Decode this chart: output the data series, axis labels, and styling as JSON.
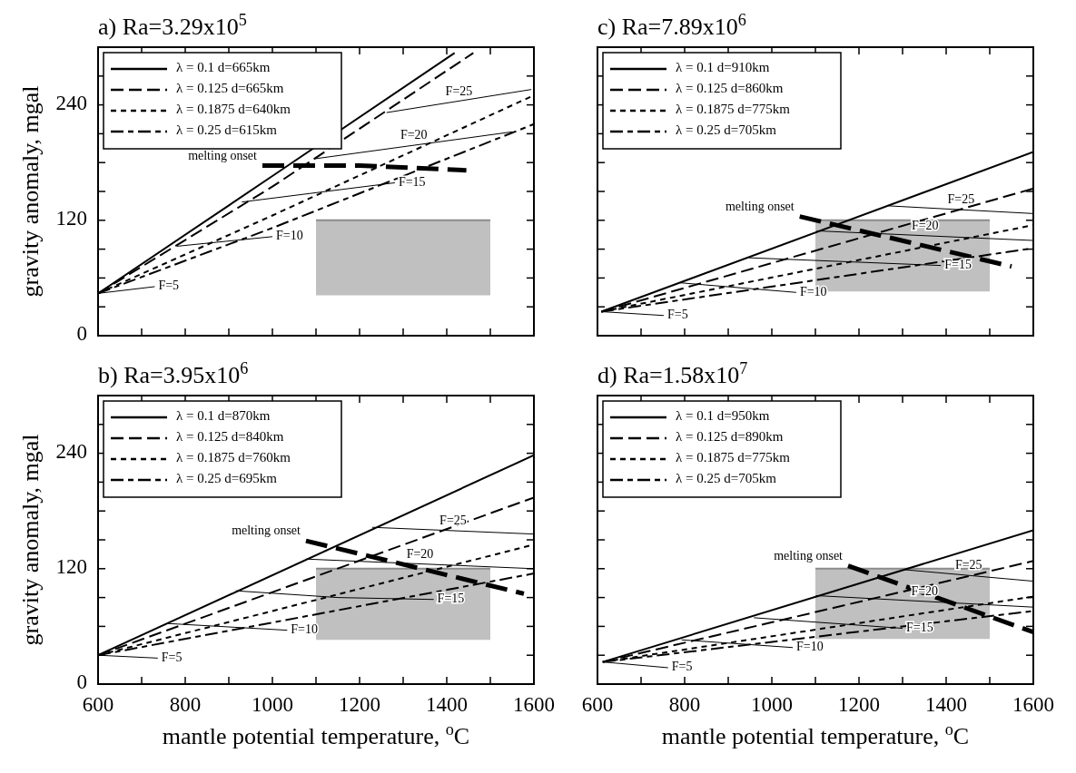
{
  "chart_data": [
    {
      "type": "line",
      "title": "a) Ra=3.29x10$^{5}$",
      "ylabel": "gravity anomaly, mgal",
      "xlim": [
        600,
        1600
      ],
      "ylim": [
        0,
        300
      ],
      "xticks": [
        600,
        {
          "value": 700,
          "label": null
        },
        800,
        {
          "value": 900,
          "label": null
        },
        1000,
        {
          "value": 1100,
          "label": null
        },
        1200,
        {
          "value": 1300,
          "label": null
        },
        1400,
        {
          "value": 1500,
          "label": null
        },
        1600
      ],
      "yticks": [
        0,
        {
          "value": 30,
          "label": null
        },
        {
          "value": 60,
          "label": null
        },
        {
          "value": 90,
          "label": null
        },
        120,
        {
          "value": 150,
          "label": null
        },
        {
          "value": 180,
          "label": null
        },
        {
          "value": 210,
          "label": null
        },
        240,
        {
          "value": 270,
          "label": null
        }
      ],
      "tick_labels": "y",
      "legend": "top left",
      "series": [
        {
          "type": "line",
          "color": "#8c8c8c",
          "x": [
            1100,
            1500
          ],
          "values": [
            120,
            120
          ],
          "lower": [
            42,
            42
          ],
          "upper": [
            120,
            120
          ]
        },
        {
          "name": "λ = 0.1 d=665km",
          "color": "#000000",
          "line_style": "solid",
          "x": [
            600,
            1000,
            1418
          ],
          "values": [
            44,
            166,
            294
          ]
        },
        {
          "name": "λ = 0.125 d=665km",
          "color": "#000000",
          "line_style": "dashed",
          "x": [
            600,
            1000,
            1461
          ],
          "values": [
            44,
            155,
            294
          ]
        },
        {
          "name": "λ = 0.1875 d=640km",
          "color": "#000000",
          "line_style": "dashed",
          "x": [
            600,
            1000,
            1600
          ],
          "values": [
            44,
            125,
            250
          ]
        },
        {
          "name": "λ = 0.25 d=615km",
          "color": "#000000",
          "line_style": "dashed",
          "x": [
            600,
            1000,
            1600
          ],
          "values": [
            44,
            112,
            220
          ]
        },
        {
          "color": "#000000",
          "x": [
            600,
            730
          ],
          "values": [
            44,
            51
          ]
        },
        {
          "color": "#000000",
          "x": [
            781,
            1000
          ],
          "values": [
            93,
            103
          ]
        },
        {
          "color": "#000000",
          "x": [
            930,
            1281
          ],
          "values": [
            139,
            159
          ]
        },
        {
          "color": "#000000",
          "x": [
            1098,
            1551
          ],
          "values": [
            184,
            212
          ]
        },
        {
          "color": "#000000",
          "x": [
            1262,
            1594
          ],
          "values": [
            232,
            256
          ]
        },
        {
          "color": "#000000",
          "line_style": "dashed",
          "x": [
            977,
            1200,
            1445
          ],
          "values": [
            177,
            177,
            172
          ]
        }
      ],
      "annotations": [
        "F=5",
        "F=10",
        "F=15",
        "F=20",
        "F=25",
        "melting onset"
      ]
    },
    {
      "type": "line",
      "title": "c) Ra=7.89x10$^{6}$",
      "xlim": [
        600,
        1600
      ],
      "ylim": [
        0,
        300
      ],
      "xticks": [
        600,
        {
          "value": 700,
          "label": null
        },
        800,
        {
          "value": 900,
          "label": null
        },
        1000,
        {
          "value": 1100,
          "label": null
        },
        1200,
        {
          "value": 1300,
          "label": null
        },
        1400,
        {
          "value": 1500,
          "label": null
        },
        1600
      ],
      "yticks": [
        0,
        {
          "value": 30,
          "label": null
        },
        {
          "value": 60,
          "label": null
        },
        {
          "value": 90,
          "label": null
        },
        120,
        {
          "value": 150,
          "label": null
        },
        {
          "value": 180,
          "label": null
        },
        {
          "value": 210,
          "label": null
        },
        240,
        {
          "value": 270,
          "label": null
        }
      ],
      "tick_labels": false,
      "legend": "top left",
      "series": [
        {
          "type": "line",
          "color": "#8c8c8c",
          "x": [
            1100,
            1500
          ],
          "values": [
            120,
            120
          ],
          "lower": [
            46,
            46
          ],
          "upper": [
            120,
            120
          ]
        },
        {
          "name": "λ = 0.1 d=910km",
          "color": "#000000",
          "line_style": "solid",
          "x": [
            609,
            1600
          ],
          "values": [
            25,
            191
          ]
        },
        {
          "name": "λ = 0.125 d=860km",
          "color": "#000000",
          "line_style": "dashed",
          "x": [
            609,
            1600
          ],
          "values": [
            25,
            153
          ]
        },
        {
          "name": "λ = 0.1875 d=775km",
          "color": "#000000",
          "line_style": "dashed",
          "x": [
            609,
            1600
          ],
          "values": [
            25,
            115
          ]
        },
        {
          "name": "λ = 0.25 d=705km",
          "color": "#000000",
          "line_style": "dashed",
          "x": [
            609,
            1600
          ],
          "values": [
            25,
            91
          ]
        },
        {
          "color": "#000000",
          "x": [
            609,
            752
          ],
          "values": [
            25,
            21
          ]
        },
        {
          "color": "#000000",
          "x": [
            790,
            1056
          ],
          "values": [
            55,
            45
          ]
        },
        {
          "color": "#000000",
          "x": [
            948,
            1388
          ],
          "values": [
            81,
            73
          ]
        },
        {
          "color": "#000000",
          "x": [
            1103,
            1600
          ],
          "values": [
            109,
            99
          ]
        },
        {
          "color": "#000000",
          "x": [
            1268,
            1600
          ],
          "values": [
            135,
            127
          ]
        },
        {
          "color": "#000000",
          "line_style": "dashed",
          "x": [
            1064,
            1550
          ],
          "values": [
            124,
            72
          ]
        }
      ],
      "annotations": [
        "F=5",
        "F=10",
        "F=15",
        "F=20",
        "F=25",
        "melting onset"
      ]
    },
    {
      "type": "line",
      "title": "b) Ra=3.95x10$^{6}$",
      "xlabel": "mantle potential temperature, $^{o}$C",
      "ylabel": "gravity anomaly, mgal",
      "xlim": [
        600,
        1600
      ],
      "ylim": [
        0,
        300
      ],
      "xticks": [
        600,
        {
          "value": 700,
          "label": null
        },
        800,
        {
          "value": 900,
          "label": null
        },
        1000,
        {
          "value": 1100,
          "label": null
        },
        1200,
        {
          "value": 1300,
          "label": null
        },
        1400,
        {
          "value": 1500,
          "label": null
        },
        1600
      ],
      "yticks": [
        0,
        {
          "value": 30,
          "label": null
        },
        {
          "value": 60,
          "label": null
        },
        {
          "value": 90,
          "label": null
        },
        120,
        {
          "value": 150,
          "label": null
        },
        {
          "value": 180,
          "label": null
        },
        {
          "value": 210,
          "label": null
        },
        240,
        {
          "value": 270,
          "label": null
        }
      ],
      "legend": "top left",
      "series": [
        {
          "type": "line",
          "color": "#8c8c8c",
          "x": [
            1100,
            1500
          ],
          "values": [
            120,
            120
          ],
          "lower": [
            46,
            46
          ],
          "upper": [
            120,
            120
          ]
        },
        {
          "name": "λ = 0.1 d=870km",
          "color": "#000000",
          "line_style": "solid",
          "x": [
            600,
            1600
          ],
          "values": [
            30,
            238
          ]
        },
        {
          "name": "λ = 0.125 d=840km",
          "color": "#000000",
          "line_style": "dashed",
          "x": [
            600,
            1600
          ],
          "values": [
            30,
            194
          ]
        },
        {
          "name": "λ = 0.1875 d=760km",
          "color": "#000000",
          "line_style": "dashed",
          "x": [
            600,
            1600
          ],
          "values": [
            30,
            145
          ]
        },
        {
          "name": "λ = 0.25 d=695km",
          "color": "#000000",
          "line_style": "dashed",
          "x": [
            600,
            1600
          ],
          "values": [
            30,
            115
          ]
        },
        {
          "color": "#000000",
          "x": [
            600,
            737
          ],
          "values": [
            30,
            27
          ]
        },
        {
          "color": "#000000",
          "x": [
            760,
            1034
          ],
          "values": [
            63,
            56
          ]
        },
        {
          "color": "#000000",
          "x": [
            916,
            1150,
            1370
          ],
          "values": [
            97,
            90,
            88
          ]
        },
        {
          "color": "#000000",
          "x": [
            1077,
            1600
          ],
          "values": [
            130,
            120
          ]
        },
        {
          "color": "#000000",
          "x": [
            1229,
            1600
          ],
          "values": [
            163,
            156
          ]
        },
        {
          "color": "#000000",
          "line_style": "dashed",
          "x": [
            1077,
            1577
          ],
          "values": [
            149,
            94
          ]
        }
      ],
      "annotations": [
        "F=5",
        "F=10",
        "F=15",
        "F=20",
        "F=25",
        "melting onset"
      ]
    },
    {
      "type": "line",
      "title": "d) Ra=1.58x10$^{7}$",
      "xlabel": "mantle potential temperature, $^{o}$C",
      "xlim": [
        600,
        1600
      ],
      "ylim": [
        0,
        300
      ],
      "xticks": [
        600,
        {
          "value": 700,
          "label": null
        },
        800,
        {
          "value": 900,
          "label": null
        },
        1000,
        {
          "value": 1100,
          "label": null
        },
        1200,
        {
          "value": 1300,
          "label": null
        },
        1400,
        {
          "value": 1500,
          "label": null
        },
        1600
      ],
      "yticks": [
        0,
        {
          "value": 30,
          "label": null
        },
        {
          "value": 60,
          "label": null
        },
        {
          "value": 90,
          "label": null
        },
        120,
        {
          "value": 150,
          "label": null
        },
        {
          "value": 180,
          "label": null
        },
        {
          "value": 210,
          "label": null
        },
        240,
        {
          "value": 270,
          "label": null
        }
      ],
      "tick_labels": "x",
      "legend": "top left",
      "series": [
        {
          "type": "line",
          "color": "#8c8c8c",
          "x": [
            1100,
            1500
          ],
          "values": [
            120,
            120
          ],
          "lower": [
            47,
            47
          ],
          "upper": [
            120,
            120
          ]
        },
        {
          "name": "λ = 0.1 d=950km",
          "color": "#000000",
          "line_style": "solid",
          "x": [
            612,
            1600
          ],
          "values": [
            23,
            160
          ]
        },
        {
          "name": "λ = 0.125 d=890km",
          "color": "#000000",
          "line_style": "dashed",
          "x": [
            612,
            1600
          ],
          "values": [
            23,
            128
          ]
        },
        {
          "name": "λ = 0.1875 d=775km",
          "color": "#000000",
          "line_style": "dashed",
          "x": [
            612,
            1600
          ],
          "values": [
            23,
            91
          ]
        },
        {
          "name": "λ = 0.25 d=705km",
          "color": "#000000",
          "line_style": "dashed",
          "x": [
            612,
            1600
          ],
          "values": [
            23,
            76
          ]
        },
        {
          "color": "#000000",
          "x": [
            612,
            762
          ],
          "values": [
            23,
            17
          ]
        },
        {
          "color": "#000000",
          "x": [
            793,
            1048
          ],
          "values": [
            46,
            38
          ]
        },
        {
          "color": "#000000",
          "x": [
            959,
            1300
          ],
          "values": [
            69,
            58
          ]
        },
        {
          "color": "#000000",
          "x": [
            1101,
            1600
          ],
          "values": [
            92,
            80
          ]
        },
        {
          "color": "#000000",
          "x": [
            1303,
            1600
          ],
          "values": [
            119,
            107
          ]
        },
        {
          "color": "#000000",
          "line_style": "dashed",
          "x": [
            1175,
            1600
          ],
          "values": [
            123,
            54
          ]
        }
      ],
      "annotations": [
        "F=5",
        "F=10",
        "F=15",
        "F=20",
        "F=25",
        "melting onset"
      ]
    }
  ]
}
